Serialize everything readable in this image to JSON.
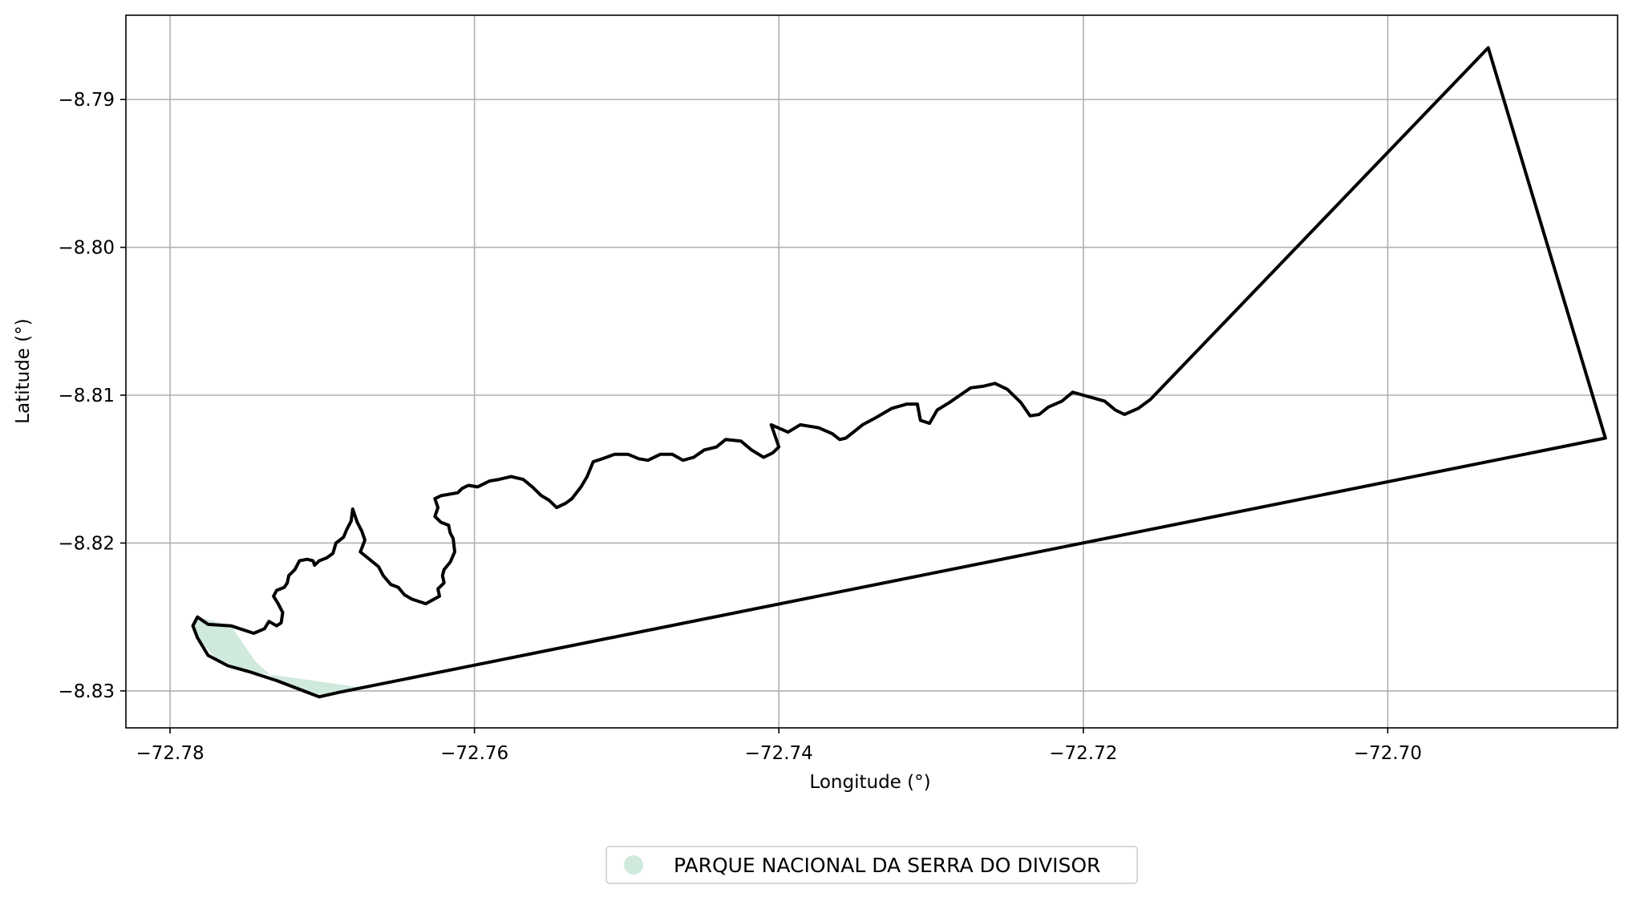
{
  "chart_data": {
    "type": "map",
    "xlabel": "Longitude (°)",
    "ylabel": "Latitude (°)",
    "xlim": [
      -72.7829,
      -72.6849
    ],
    "ylim": [
      -8.8325,
      -8.7843
    ],
    "grid": true,
    "x_ticks": [
      {
        "value": -72.78,
        "label": "−72.78"
      },
      {
        "value": -72.76,
        "label": "−72.76"
      },
      {
        "value": -72.74,
        "label": "−72.74"
      },
      {
        "value": -72.72,
        "label": "−72.72"
      },
      {
        "value": -72.7,
        "label": "−72.70"
      }
    ],
    "y_ticks": [
      {
        "value": -8.79,
        "label": "−8.79"
      },
      {
        "value": -8.8,
        "label": "−8.80"
      },
      {
        "value": -8.81,
        "label": "−8.81"
      },
      {
        "value": -8.82,
        "label": "−8.82"
      },
      {
        "value": -8.83,
        "label": "−8.83"
      }
    ],
    "legend": {
      "position": "bottom-center",
      "entries": [
        {
          "label": "PARQUE NACIONAL DA SERRA DO DIVISOR",
          "color": "#cfe9dc"
        }
      ]
    },
    "outline_color": "#000000",
    "fill_color": "#cfe9dc",
    "boundary": [
      [
        -72.7782,
        -8.825
      ],
      [
        -72.7775,
        -8.8255
      ],
      [
        -72.776,
        -8.8256
      ],
      [
        -72.7745,
        -8.8261
      ],
      [
        -72.7738,
        -8.8258
      ],
      [
        -72.7735,
        -8.8253
      ],
      [
        -72.773,
        -8.8256
      ],
      [
        -72.7727,
        -8.8254
      ],
      [
        -72.7726,
        -8.8247
      ],
      [
        -72.7729,
        -8.8241
      ],
      [
        -72.7732,
        -8.8236
      ],
      [
        -72.773,
        -8.8232
      ],
      [
        -72.7725,
        -8.823
      ],
      [
        -72.7723,
        -8.8227
      ],
      [
        -72.7722,
        -8.8222
      ],
      [
        -72.7718,
        -8.8218
      ],
      [
        -72.7715,
        -8.8212
      ],
      [
        -72.771,
        -8.8211
      ],
      [
        -72.7706,
        -8.8212
      ],
      [
        -72.7705,
        -8.8215
      ],
      [
        -72.7702,
        -8.8212
      ],
      [
        -72.7697,
        -8.821
      ],
      [
        -72.7693,
        -8.8207
      ],
      [
        -72.7691,
        -8.82
      ],
      [
        -72.7686,
        -8.8196
      ],
      [
        -72.7684,
        -8.8191
      ],
      [
        -72.7681,
        -8.8185
      ],
      [
        -72.768,
        -8.8177
      ],
      [
        -72.7677,
        -8.8186
      ],
      [
        -72.7674,
        -8.8192
      ],
      [
        -72.7672,
        -8.8198
      ],
      [
        -72.7675,
        -8.8206
      ],
      [
        -72.7669,
        -8.8211
      ],
      [
        -72.7663,
        -8.8216
      ],
      [
        -72.766,
        -8.8222
      ],
      [
        -72.7655,
        -8.8228
      ],
      [
        -72.765,
        -8.823
      ],
      [
        -72.7646,
        -8.8235
      ],
      [
        -72.7641,
        -8.8238
      ],
      [
        -72.7632,
        -8.8241
      ],
      [
        -72.7623,
        -8.8236
      ],
      [
        -72.7624,
        -8.8231
      ],
      [
        -72.762,
        -8.8227
      ],
      [
        -72.7621,
        -8.8222
      ],
      [
        -72.762,
        -8.8218
      ],
      [
        -72.7616,
        -8.8213
      ],
      [
        -72.7613,
        -8.8206
      ],
      [
        -72.7614,
        -8.8197
      ],
      [
        -72.7616,
        -8.8193
      ],
      [
        -72.7617,
        -8.8188
      ],
      [
        -72.7622,
        -8.8186
      ],
      [
        -72.7626,
        -8.8182
      ],
      [
        -72.7624,
        -8.8176
      ],
      [
        -72.7626,
        -8.817
      ],
      [
        -72.7622,
        -8.8168
      ],
      [
        -72.7611,
        -8.8166
      ],
      [
        -72.7608,
        -8.8163
      ],
      [
        -72.7604,
        -8.8161
      ],
      [
        -72.7598,
        -8.8162
      ],
      [
        -72.759,
        -8.8158
      ],
      [
        -72.7584,
        -8.8157
      ],
      [
        -72.7576,
        -8.8155
      ],
      [
        -72.7568,
        -8.8157
      ],
      [
        -72.7562,
        -8.8162
      ],
      [
        -72.7556,
        -8.8168
      ],
      [
        -72.7551,
        -8.8171
      ],
      [
        -72.7546,
        -8.8176
      ],
      [
        -72.754,
        -8.8173
      ],
      [
        -72.7536,
        -8.817
      ],
      [
        -72.753,
        -8.8162
      ],
      [
        -72.7526,
        -8.8155
      ],
      [
        -72.7522,
        -8.8145
      ],
      [
        -72.7516,
        -8.8143
      ],
      [
        -72.7508,
        -8.814
      ],
      [
        -72.7499,
        -8.814
      ],
      [
        -72.7492,
        -8.8143
      ],
      [
        -72.7486,
        -8.8144
      ],
      [
        -72.7478,
        -8.814
      ],
      [
        -72.747,
        -8.814
      ],
      [
        -72.7463,
        -8.8144
      ],
      [
        -72.7456,
        -8.8142
      ],
      [
        -72.7449,
        -8.8137
      ],
      [
        -72.7441,
        -8.8135
      ],
      [
        -72.7435,
        -8.813
      ],
      [
        -72.7425,
        -8.8131
      ],
      [
        -72.7418,
        -8.8137
      ],
      [
        -72.741,
        -8.8142
      ],
      [
        -72.7404,
        -8.8139
      ],
      [
        -72.74,
        -8.8135
      ],
      [
        -72.7405,
        -8.812
      ],
      [
        -72.7394,
        -8.8125
      ],
      [
        -72.7386,
        -8.812
      ],
      [
        -72.7374,
        -8.8122
      ],
      [
        -72.7365,
        -8.8126
      ],
      [
        -72.736,
        -8.813
      ],
      [
        -72.7356,
        -8.8129
      ],
      [
        -72.7351,
        -8.8125
      ],
      [
        -72.7345,
        -8.812
      ],
      [
        -72.7336,
        -8.8115
      ],
      [
        -72.7326,
        -8.8109
      ],
      [
        -72.7316,
        -8.8106
      ],
      [
        -72.7309,
        -8.8106
      ],
      [
        -72.7307,
        -8.8117
      ],
      [
        -72.7301,
        -8.8119
      ],
      [
        -72.7296,
        -8.811
      ],
      [
        -72.7288,
        -8.8105
      ],
      [
        -72.7281,
        -8.81
      ],
      [
        -72.7274,
        -8.8095
      ],
      [
        -72.7266,
        -8.8094
      ],
      [
        -72.7258,
        -8.8092
      ],
      [
        -72.725,
        -8.8096
      ],
      [
        -72.7241,
        -8.8105
      ],
      [
        -72.7235,
        -8.8114
      ],
      [
        -72.7229,
        -8.8113
      ],
      [
        -72.7223,
        -8.8108
      ],
      [
        -72.7214,
        -8.8104
      ],
      [
        -72.7207,
        -8.8098
      ],
      [
        -72.72,
        -8.81
      ],
      [
        -72.7193,
        -8.8102
      ],
      [
        -72.7186,
        -8.8104
      ],
      [
        -72.7179,
        -8.811
      ],
      [
        -72.7173,
        -8.8113
      ],
      [
        -72.7164,
        -8.8109
      ],
      [
        -72.7156,
        -8.8103
      ],
      [
        -72.6934,
        -8.7865
      ],
      [
        -72.6857,
        -8.8129
      ],
      [
        -72.7689,
        -8.8301
      ],
      [
        -72.7702,
        -8.8304
      ],
      [
        -72.773,
        -8.8293
      ],
      [
        -72.7748,
        -8.8287
      ],
      [
        -72.7762,
        -8.8283
      ],
      [
        -72.7775,
        -8.8276
      ],
      [
        -72.7782,
        -8.8264
      ],
      [
        -72.7785,
        -8.8256
      ],
      [
        -72.7782,
        -8.825
      ]
    ],
    "park_fill": [
      [
        -72.7782,
        -8.825
      ],
      [
        -72.776,
        -8.8256
      ],
      [
        -72.7744,
        -8.828
      ],
      [
        -72.773,
        -8.8293
      ],
      [
        -72.77,
        -8.8303
      ],
      [
        -72.7672,
        -8.8298
      ],
      [
        -72.7748,
        -8.8287
      ],
      [
        -72.777,
        -8.8278
      ],
      [
        -72.7782,
        -8.8264
      ],
      [
        -72.7785,
        -8.8256
      ]
    ]
  }
}
